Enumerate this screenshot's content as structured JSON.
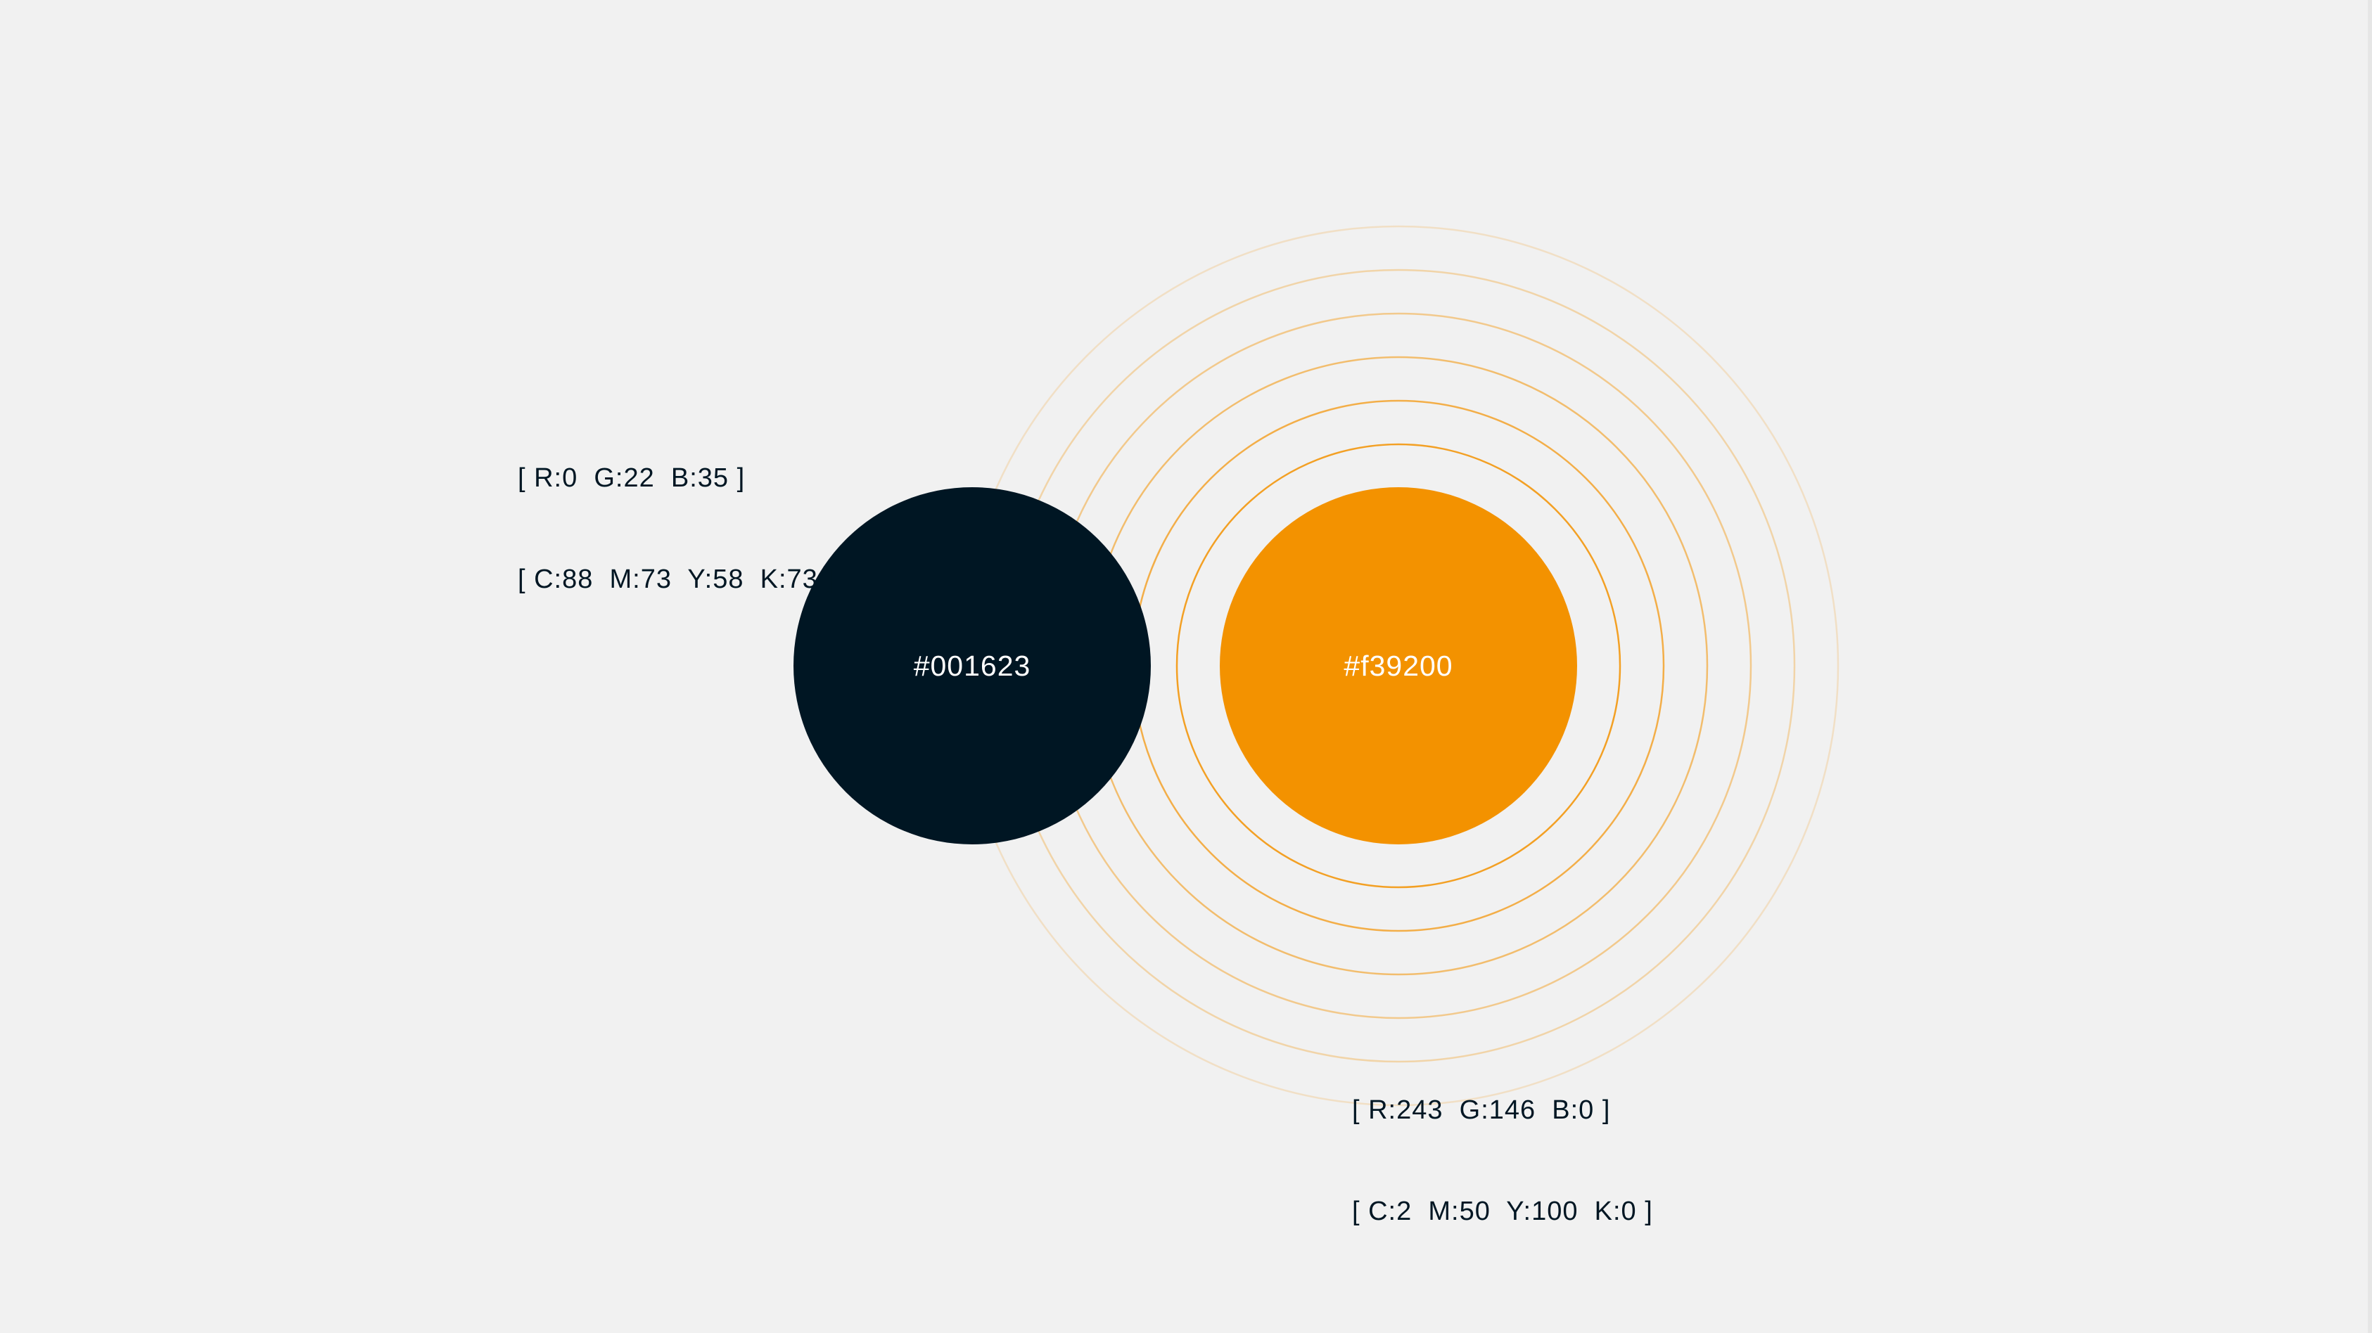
{
  "colors": {
    "navy": "#001623",
    "orange": "#f39200",
    "background": "#f1f1f1"
  },
  "swatches": [
    {
      "hex_label": "#001623",
      "color": "#001623",
      "rgb_line": "[ R:0  G:22  B:35 ]",
      "cmyk_line": "[ C:88  M:73  Y:58  K:73 ]"
    },
    {
      "hex_label": "#f39200",
      "color": "#f39200",
      "rgb_line": "[ R:243  G:146  B:0 ]",
      "cmyk_line": "[ C:2  M:50  Y:100  K:0 ]"
    }
  ]
}
